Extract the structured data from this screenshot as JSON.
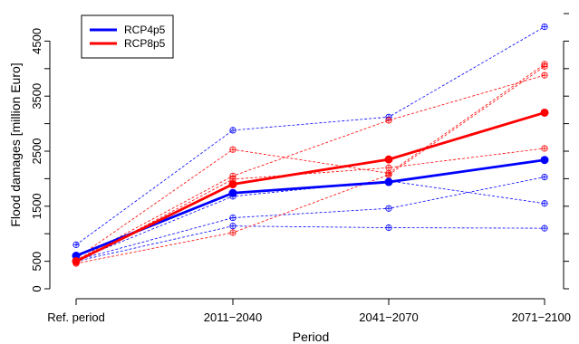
{
  "chart_data": {
    "type": "line",
    "title": "",
    "xlabel": "Period",
    "ylabel": "Flood damages [million Euro]",
    "categories": [
      "Ref. period",
      "2011−2040",
      "2041−2070",
      "2071−2100"
    ],
    "ylim": [
      0,
      5000
    ],
    "y_ticks": [
      0,
      500,
      1500,
      2500,
      3500,
      4500
    ],
    "grid": false,
    "legend_position": "top-left",
    "series": [
      {
        "name": "RCP4p5",
        "color": "#0000ff",
        "style": "mean",
        "values": [
          600,
          1740,
          1940,
          2340
        ]
      },
      {
        "name": "RCP8p5",
        "color": "#ff0000",
        "style": "mean",
        "values": [
          500,
          1900,
          2350,
          3200
        ]
      }
    ],
    "members": [
      {
        "color": "#0000ff",
        "values": [
          800,
          2880,
          3120,
          4760
        ]
      },
      {
        "color": "#0000ff",
        "values": [
          520,
          1680,
          1960,
          1550
        ]
      },
      {
        "color": "#0000ff",
        "values": [
          520,
          1290,
          1460,
          2030
        ]
      },
      {
        "color": "#0000ff",
        "values": [
          500,
          1140,
          1110,
          1100
        ]
      },
      {
        "color": "#ff0000",
        "values": [
          550,
          2530,
          2100,
          4080
        ]
      },
      {
        "color": "#ff0000",
        "values": [
          520,
          2050,
          3060,
          3880
        ]
      },
      {
        "color": "#ff0000",
        "values": [
          480,
          1990,
          2200,
          2550
        ]
      },
      {
        "color": "#ff0000",
        "values": [
          460,
          1020,
          2070,
          4040
        ]
      }
    ]
  }
}
